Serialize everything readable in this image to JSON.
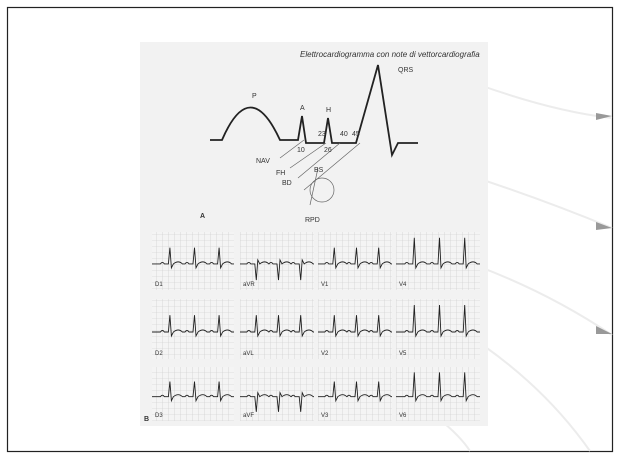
{
  "header": {
    "caption": "Elettrocardiogramma con note di vettorcardiografia"
  },
  "diagram": {
    "figure_label": "A",
    "waves": [
      "P",
      "A",
      "H",
      "QRS"
    ],
    "intervals": [
      "10",
      "23",
      "26",
      "40",
      "45"
    ],
    "structures": [
      "NAV",
      "FH",
      "BD",
      "BS",
      "RPD"
    ]
  },
  "ecg": {
    "figure_label": "B",
    "leads": [
      [
        "D1",
        "aVR",
        "V1",
        "V4"
      ],
      [
        "D2",
        "aVL",
        "V2",
        "V5"
      ],
      [
        "D3",
        "aVF",
        "V3",
        "V6"
      ]
    ]
  }
}
